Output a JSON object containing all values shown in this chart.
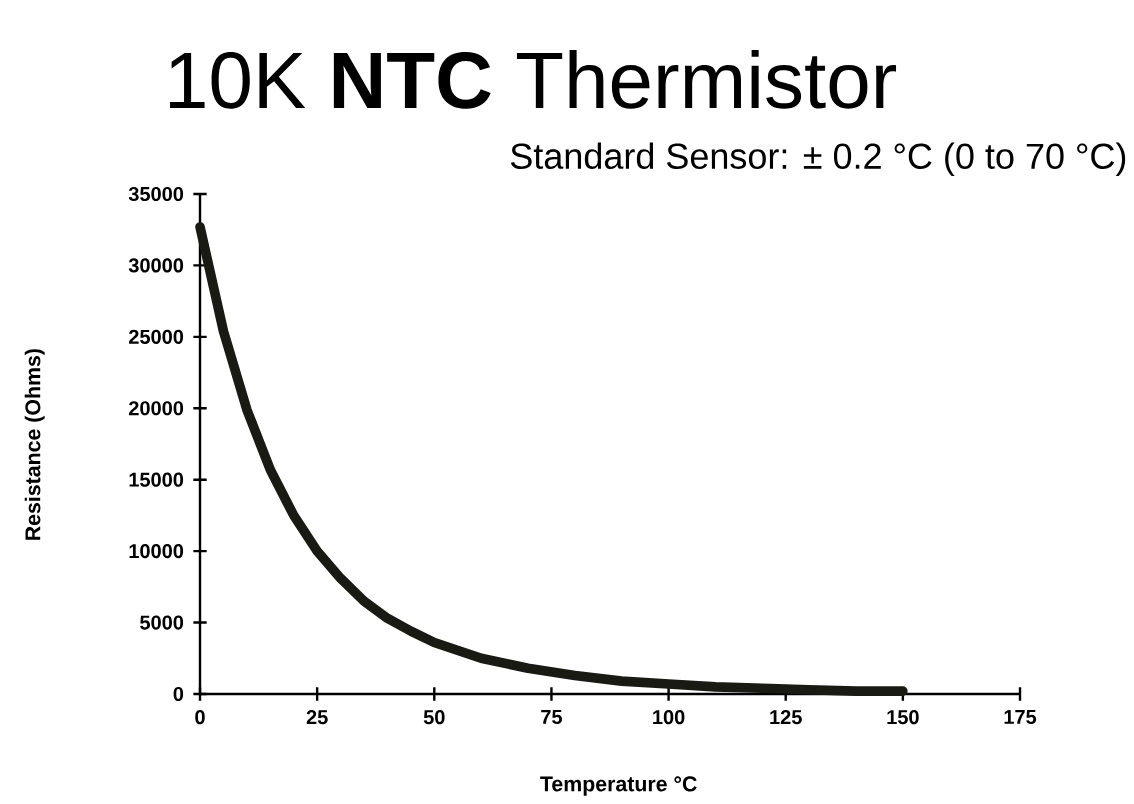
{
  "chart_data": {
    "type": "line",
    "title": "10K **NTC** Thermistor",
    "subtitle": "Standard Sensor: ± 0.2 °C (0 to 70 °C)",
    "xlabel": "Temperature °C",
    "ylabel": "Resistance  (Ohms)",
    "x": [
      0,
      5,
      10,
      15,
      20,
      25,
      30,
      35,
      40,
      45,
      50,
      60,
      70,
      80,
      90,
      100,
      110,
      120,
      130,
      140,
      150
    ],
    "values": [
      32700,
      25400,
      19900,
      15700,
      12500,
      10000,
      8100,
      6500,
      5300,
      4400,
      3600,
      2500,
      1800,
      1300,
      900,
      700,
      500,
      400,
      300,
      200,
      200
    ],
    "color": "#1a1a14",
    "line_style": "solid",
    "xlim": [
      0,
      175
    ],
    "ylim": [
      0,
      35000
    ],
    "xticks": [
      0,
      25,
      50,
      75,
      100,
      125,
      150,
      175
    ],
    "yticks": [
      0,
      5000,
      10000,
      15000,
      20000,
      25000,
      30000,
      35000
    ]
  }
}
